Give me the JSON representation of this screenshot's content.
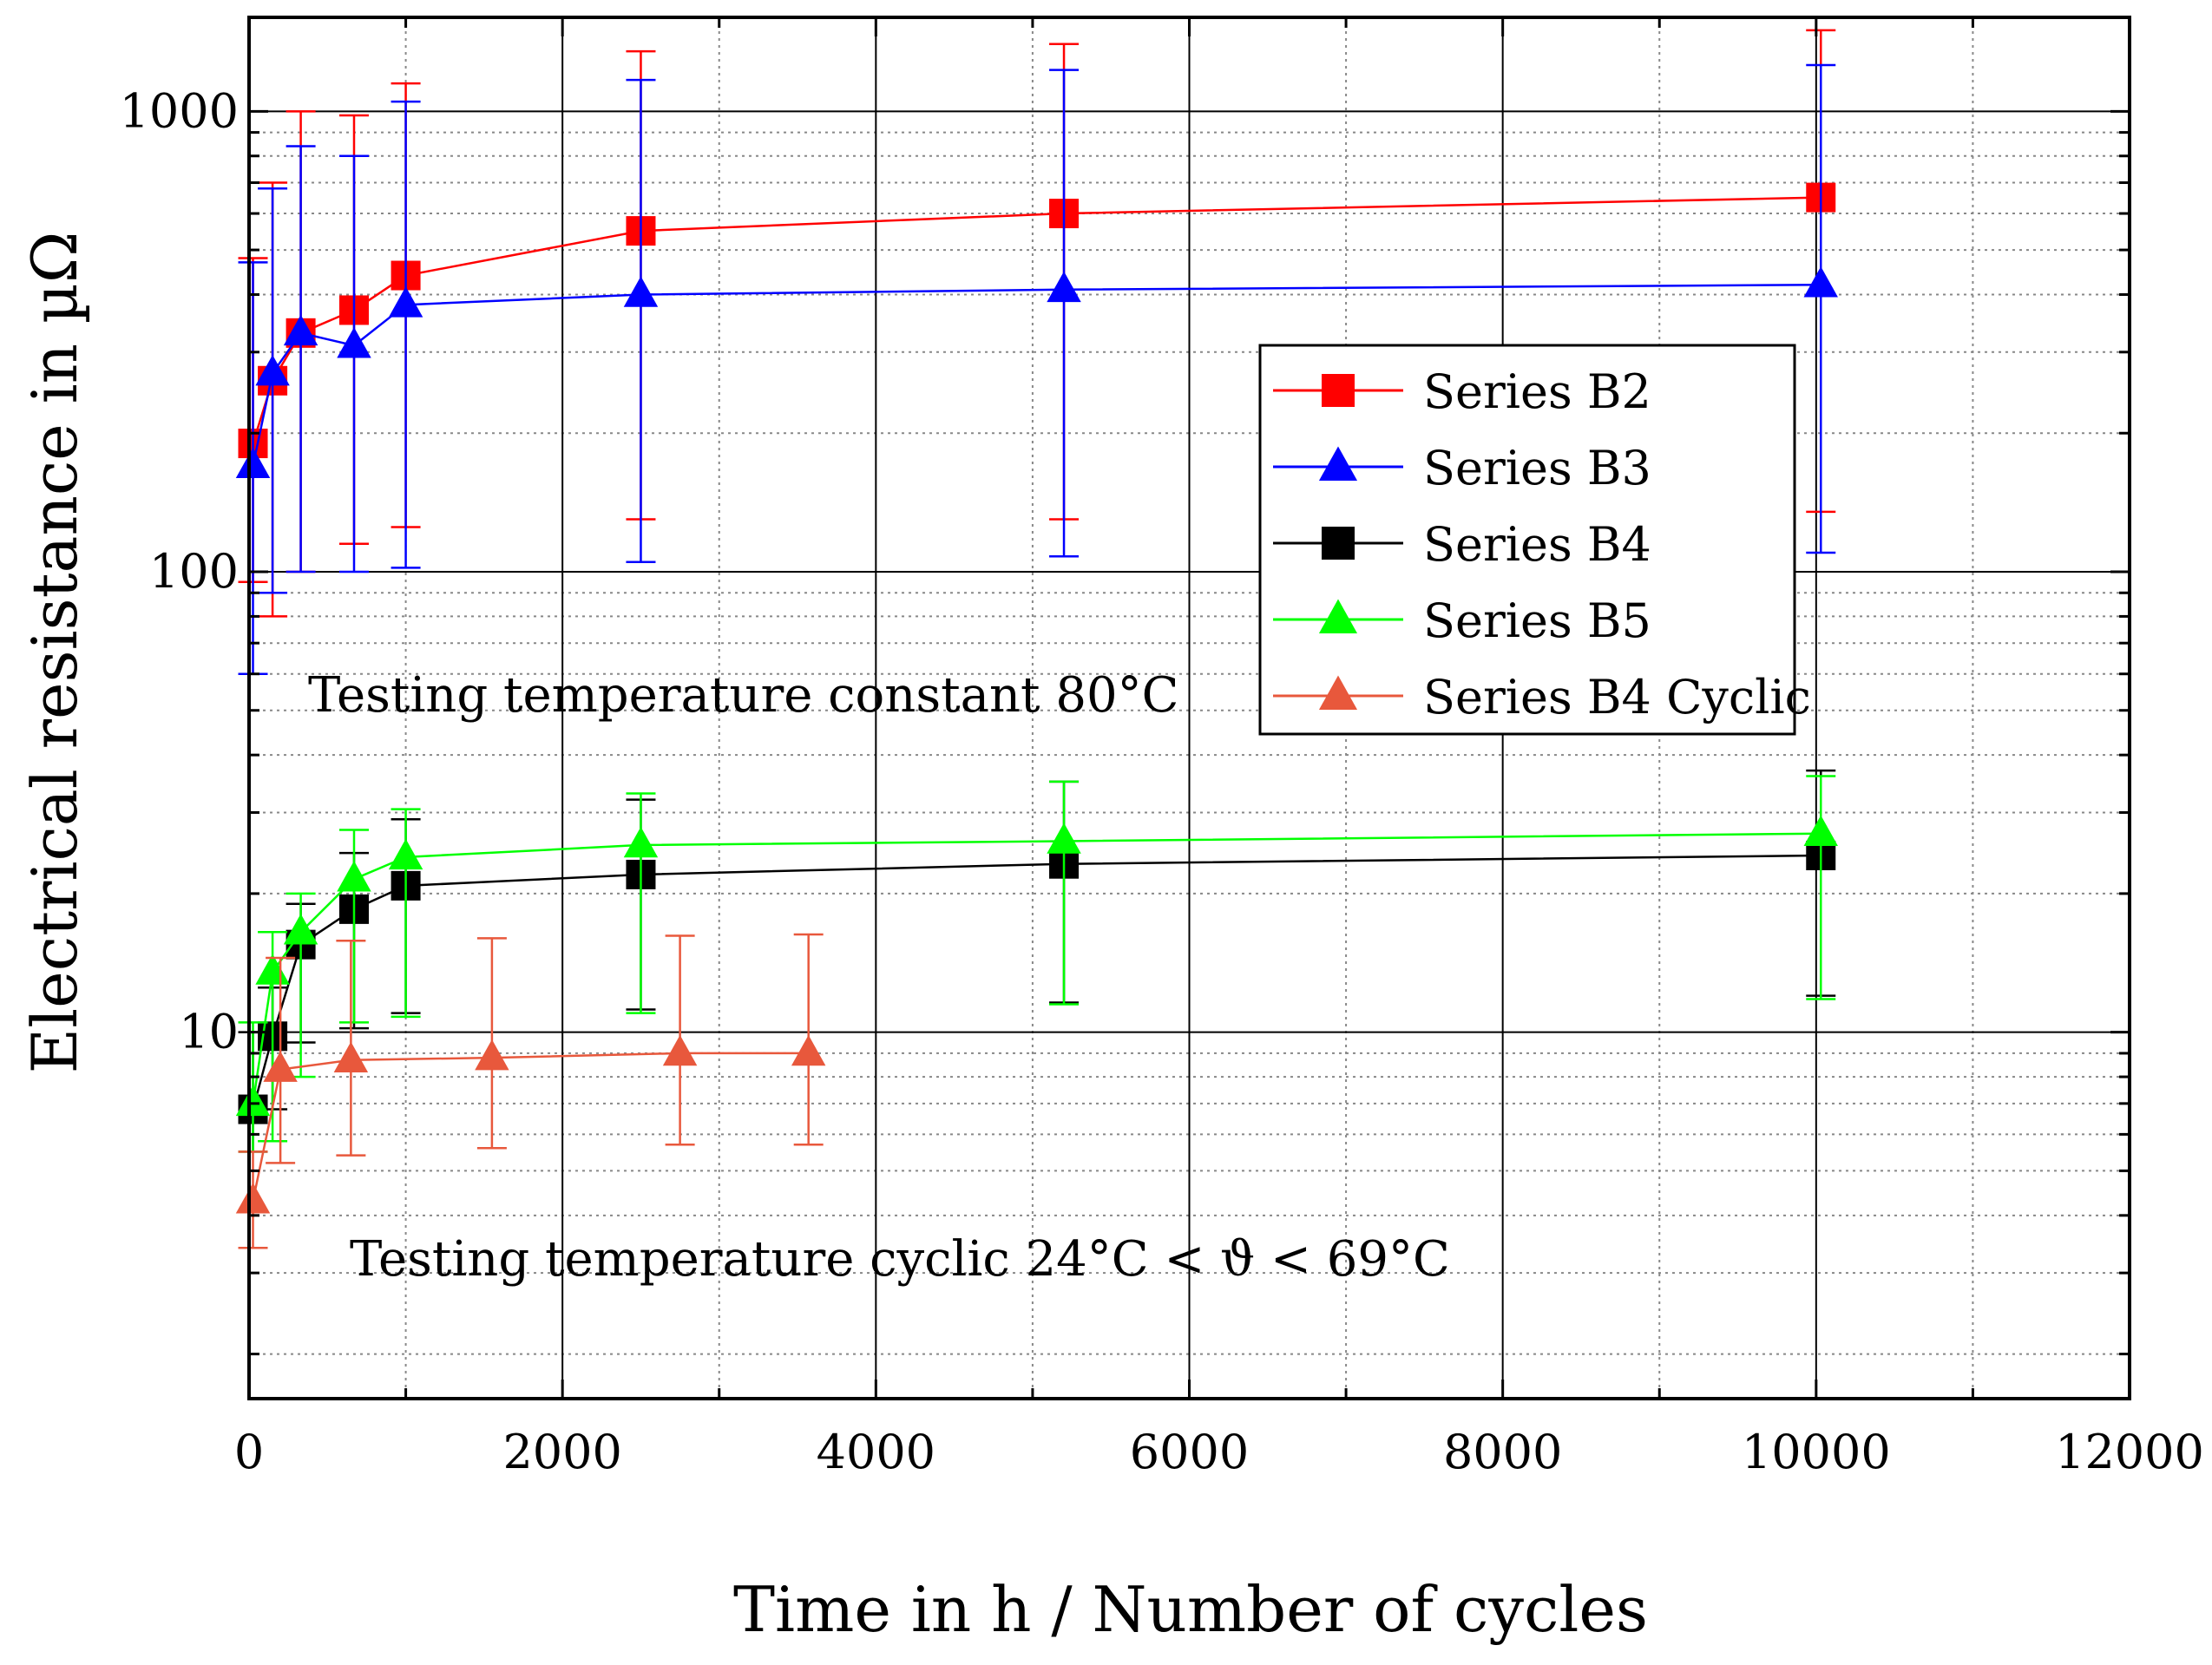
{
  "chart_data": {
    "type": "scatter",
    "title": "",
    "xlabel": "Time in h / Number of cycles",
    "ylabel": "Electrical resistance in µΩ",
    "xlim": [
      0,
      12000
    ],
    "ylim": [
      1.6,
      1600
    ],
    "yscale": "log",
    "x_ticks": [
      0,
      2000,
      4000,
      6000,
      8000,
      10000,
      12000
    ],
    "x_tick_labels": [
      "0",
      "2000",
      "4000",
      "6000",
      "8000",
      "10000",
      "12000"
    ],
    "y_ticks": [
      10,
      100,
      1000
    ],
    "y_tick_labels": [
      "10",
      "100",
      "1000"
    ],
    "grid": true,
    "legend_position": "top-right",
    "annotations": [
      "Testing temperature constant 80°C",
      "Testing temperature cyclic 24°C < ϑ < 69°C"
    ],
    "series": [
      {
        "name": "Series B2",
        "color": "#ff0000",
        "marker": "square",
        "x": [
          25,
          150,
          330,
          670,
          1000,
          2500,
          5200,
          10030
        ],
        "y": [
          190,
          260,
          330,
          370,
          440,
          550,
          600,
          650
        ],
        "err_low": [
          95,
          80,
          100,
          115,
          125,
          130,
          130,
          135
        ],
        "err_high": [
          480,
          700,
          1000,
          980,
          1150,
          1350,
          1400,
          1500
        ]
      },
      {
        "name": "Series B3",
        "color": "#0000ff",
        "marker": "triangle",
        "x": [
          25,
          150,
          330,
          670,
          1000,
          2500,
          5200,
          10030
        ],
        "y": [
          170,
          270,
          330,
          310,
          380,
          400,
          410,
          420
        ],
        "err_low": [
          60,
          90,
          100,
          100,
          102,
          105,
          108,
          110
        ],
        "err_high": [
          470,
          680,
          840,
          800,
          1050,
          1170,
          1230,
          1260
        ]
      },
      {
        "name": "Series B4",
        "color": "#000000",
        "marker": "square",
        "x": [
          25,
          150,
          330,
          670,
          1000,
          2500,
          5200,
          10030
        ],
        "y": [
          6.8,
          9.8,
          15.5,
          18.5,
          20.8,
          22,
          23.2,
          24.2
        ],
        "err_low": [
          5.5,
          6.8,
          9.5,
          10.2,
          11,
          11.2,
          11.6,
          12
        ],
        "err_high": [
          10,
          12.5,
          19,
          24.5,
          29,
          32,
          35,
          37
        ]
      },
      {
        "name": "Series B5",
        "color": "#00ff00",
        "marker": "triangle",
        "x": [
          25,
          150,
          330,
          670,
          1000,
          2500,
          5200,
          10030
        ],
        "y": [
          7,
          13.5,
          16.5,
          21.5,
          24,
          25.5,
          26,
          27
        ],
        "err_low": [
          5.5,
          5.8,
          8,
          10.5,
          10.8,
          11,
          11.5,
          11.8
        ],
        "err_high": [
          10.5,
          16.5,
          20,
          27.5,
          30.5,
          33,
          35,
          36
        ]
      },
      {
        "name": "Series B4 Cyclic",
        "color": "#e8583c",
        "marker": "triangle",
        "x": [
          25,
          200,
          650,
          1550,
          2750,
          3570
        ],
        "y": [
          4.3,
          8.3,
          8.7,
          8.8,
          9,
          9
        ],
        "err_low": [
          3.4,
          5.2,
          5.4,
          5.6,
          5.7,
          5.7
        ],
        "err_high": [
          5.5,
          14.5,
          15.8,
          16,
          16.2,
          16.3
        ]
      }
    ]
  }
}
